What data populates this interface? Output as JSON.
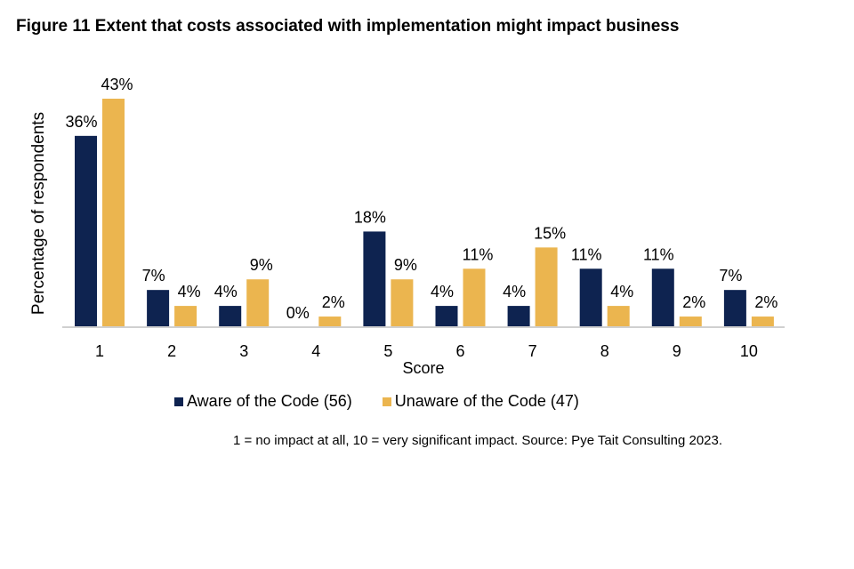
{
  "chart_data": {
    "type": "bar",
    "title": "Figure 11 Extent that costs associated with implementation might impact business",
    "xlabel": "Score",
    "ylabel": "Percentage of respondents",
    "categories": [
      "1",
      "2",
      "3",
      "4",
      "5",
      "6",
      "7",
      "8",
      "9",
      "10"
    ],
    "series": [
      {
        "name": "Aware of the Code (56)",
        "color": "#0e2350",
        "values": [
          36,
          7,
          4,
          0,
          18,
          4,
          4,
          11,
          11,
          7
        ],
        "labels": [
          "36%",
          "7%",
          "4%",
          "0%",
          "18%",
          "4%",
          "4%",
          "11%",
          "11%",
          "7%"
        ]
      },
      {
        "name": "Unaware of the Code (47)",
        "color": "#ebb54f",
        "values": [
          43,
          4,
          9,
          2,
          9,
          11,
          15,
          4,
          2,
          2
        ],
        "labels": [
          "43%",
          "4%",
          "9%",
          "2%",
          "9%",
          "11%",
          "15%",
          "4%",
          "2%",
          "2%"
        ]
      }
    ],
    "ylim": [
      0,
      43
    ],
    "grid": false,
    "legend_position": "bottom",
    "note": "1 = no impact at all, 10 = very significant impact. Source: Pye Tait Consulting 2023."
  }
}
